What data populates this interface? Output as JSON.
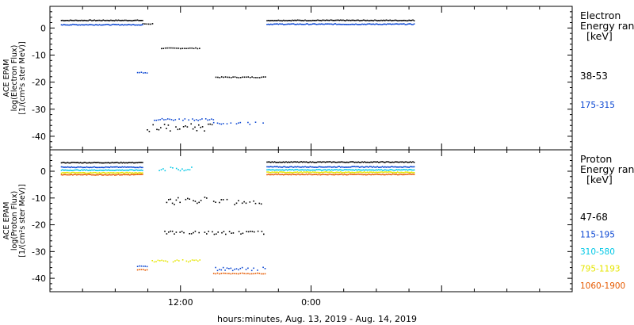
{
  "chart_data": [
    {
      "type": "scatter",
      "panel": "electron",
      "ylabel_lines": [
        "ACE EPAM",
        "log(Electron Flux)",
        "[1/(cm²s ster MeV)]"
      ],
      "ylim": [
        -45,
        8
      ],
      "yticks": [
        0,
        -10,
        -20,
        -30,
        -40
      ],
      "ytick_labels": [
        "0",
        "-10",
        "-20",
        "-30",
        "-40"
      ],
      "xlim_hours": [
        0,
        48
      ],
      "legend_title_lines": [
        "Electron",
        "Energy ran",
        "[keV]"
      ],
      "series": [
        {
          "name": "38-53",
          "color": "#000000",
          "segments": [
            {
              "x0": 1.0,
              "x1": 8.5,
              "y": 2.8
            },
            {
              "x0": 8.5,
              "x1": 9.4,
              "y": 1.5
            },
            {
              "x0": 10.2,
              "x1": 13.8,
              "y": -7.5
            },
            {
              "x0": 15.2,
              "x1": 19.8,
              "y": -18.2
            },
            {
              "x0": 19.9,
              "x1": 33.5,
              "y": 2.8
            },
            {
              "x0": 8.9,
              "x1": 15.0,
              "y": -36.8,
              "scatter": 1.5
            }
          ]
        },
        {
          "name": "175-315",
          "color": "#0a46d2",
          "segments": [
            {
              "x0": 1.0,
              "x1": 8.5,
              "y": 1.2
            },
            {
              "x0": 8.0,
              "x1": 9.0,
              "y": -16.5
            },
            {
              "x0": 9.2,
              "x1": 15.0,
              "y": -33.8,
              "scatter": 0.4
            },
            {
              "x0": 15.0,
              "x1": 19.8,
              "y": -35.2,
              "scatter": 0.4
            },
            {
              "x0": 19.9,
              "x1": 33.5,
              "y": 1.4
            }
          ]
        }
      ]
    },
    {
      "type": "scatter",
      "panel": "proton",
      "ylabel_lines": [
        "ACE EPAM",
        "log(Proton Flux)",
        "[1/(cm²s ster MeV)]"
      ],
      "ylim": [
        -45,
        8
      ],
      "yticks": [
        0,
        -10,
        -20,
        -30,
        -40
      ],
      "ytick_labels": [
        "0",
        "-10",
        "-20",
        "-30",
        "-40"
      ],
      "xlim_hours": [
        0,
        48
      ],
      "xtick_hours": [
        12,
        24
      ],
      "xtick_labels": [
        "12:00",
        "0:00"
      ],
      "xlabel": "hours:minutes, Aug. 13, 2019 - Aug. 14, 2019",
      "legend_title_lines": [
        "Proton",
        "Energy ran",
        "[keV]"
      ],
      "series": [
        {
          "name": "47-68",
          "color": "#000000",
          "segments": [
            {
              "x0": 1.0,
              "x1": 8.5,
              "y": 3.2
            },
            {
              "x0": 10.5,
              "x1": 14.5,
              "y": -11.0,
              "scatter": 1.5
            },
            {
              "x0": 15.0,
              "x1": 19.8,
              "y": -11.5,
              "scatter": 1.0
            },
            {
              "x0": 10.5,
              "x1": 19.8,
              "y": -23.0,
              "scatter": 0.6
            },
            {
              "x0": 19.9,
              "x1": 33.5,
              "y": 3.4
            }
          ]
        },
        {
          "name": "115-195",
          "color": "#0a46d2",
          "segments": [
            {
              "x0": 1.0,
              "x1": 8.5,
              "y": 1.5
            },
            {
              "x0": 8.0,
              "x1": 9.0,
              "y": -35.5
            },
            {
              "x0": 15.0,
              "x1": 19.8,
              "y": -36.5,
              "scatter": 0.6
            },
            {
              "x0": 19.9,
              "x1": 33.5,
              "y": 1.6
            }
          ]
        },
        {
          "name": "310-580",
          "color": "#00c8e6",
          "segments": [
            {
              "x0": 1.0,
              "x1": 8.5,
              "y": 0.4
            },
            {
              "x0": 10.0,
              "x1": 13.0,
              "y": 0.8,
              "scatter": 0.8
            },
            {
              "x0": 19.9,
              "x1": 33.5,
              "y": 0.5
            }
          ]
        },
        {
          "name": "795-1193",
          "color": "#e6e600",
          "segments": [
            {
              "x0": 1.0,
              "x1": 8.5,
              "y": -0.6
            },
            {
              "x0": 9.0,
              "x1": 14.0,
              "y": -33.5,
              "scatter": 0.4
            },
            {
              "x0": 19.9,
              "x1": 33.5,
              "y": -0.4
            }
          ]
        },
        {
          "name": "1060-1900",
          "color": "#e65a00",
          "segments": [
            {
              "x0": 1.0,
              "x1": 8.5,
              "y": -1.3
            },
            {
              "x0": 8.0,
              "x1": 9.0,
              "y": -36.8
            },
            {
              "x0": 15.0,
              "x1": 19.8,
              "y": -38.2
            },
            {
              "x0": 19.9,
              "x1": 33.5,
              "y": -1.2
            }
          ]
        }
      ]
    }
  ]
}
